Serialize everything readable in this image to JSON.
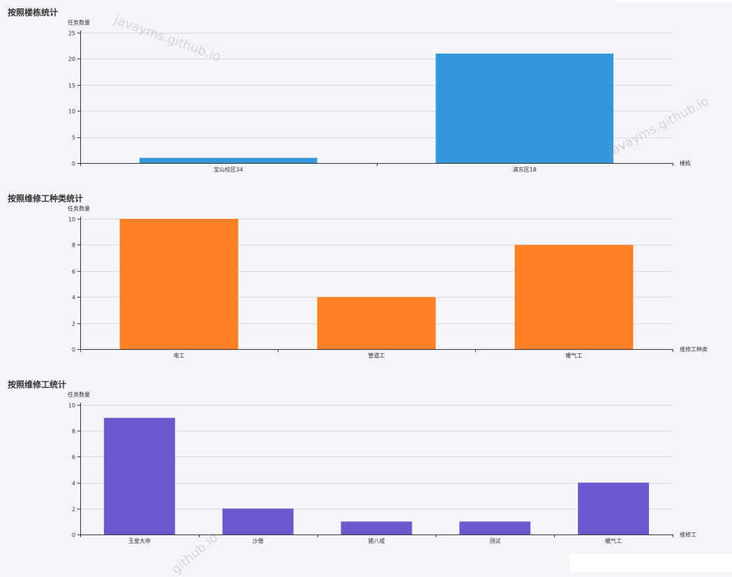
{
  "sections": [
    {
      "title": "按照楼栋统计"
    },
    {
      "title": "按照维修工种类统计"
    },
    {
      "title": "按照维修工统计"
    }
  ],
  "watermarks": [
    "javayms.github.io",
    "javayms.github.io",
    "github.io"
  ],
  "chart_data": [
    {
      "type": "bar",
      "title": "按照楼栋统计",
      "ylabel": "任务数量",
      "xlabel": "楼栋",
      "categories": [
        "宝山校区34",
        "浦东区18"
      ],
      "values": [
        1,
        21
      ],
      "ylim": [
        0,
        25
      ],
      "yticks": [
        0,
        5,
        10,
        15,
        20,
        25
      ],
      "color": "#3498db",
      "grid": true
    },
    {
      "type": "bar",
      "title": "按照维修工种类统计",
      "ylabel": "任务数量",
      "xlabel": "维修工种类",
      "categories": [
        "电工",
        "管道工",
        "暖气工"
      ],
      "values": [
        10,
        4,
        8
      ],
      "ylim": [
        0,
        10
      ],
      "yticks": [
        0,
        2,
        4,
        6,
        8,
        10
      ],
      "color": "#ff7f24",
      "grid": true
    },
    {
      "type": "bar",
      "title": "按照维修工统计",
      "ylabel": "任务数量",
      "xlabel": "维修工",
      "categories": [
        "玉皇大帝",
        "沙僧",
        "猪八戒",
        "测试",
        "暖气工"
      ],
      "values": [
        9,
        2,
        1,
        1,
        4
      ],
      "ylim": [
        0,
        10
      ],
      "yticks": [
        0,
        2,
        4,
        6,
        8,
        10
      ],
      "color": "#6a5acd",
      "grid": true
    }
  ]
}
